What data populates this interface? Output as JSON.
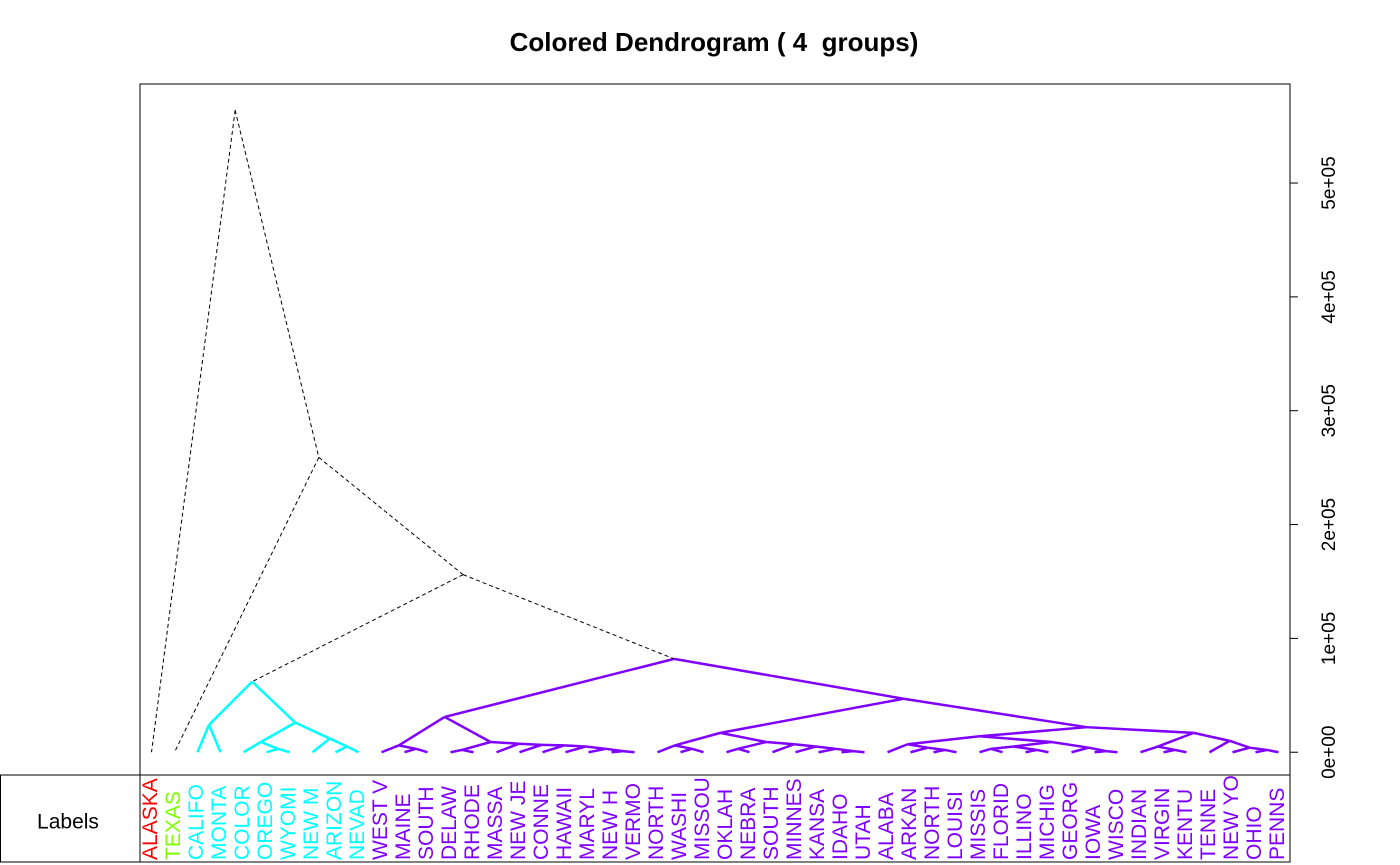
{
  "chart_data": {
    "type": "dendrogram",
    "title": "Colored Dendrogram ( 4  groups)",
    "row_label": "Labels",
    "labels": [
      "ALASKA",
      "TEXAS",
      "CALIFO",
      "MONTA",
      "COLOR",
      "OREGO",
      "WYOMI",
      "NEW M",
      "ARIZON",
      "NEVAD",
      "WEST V",
      "MAINE",
      "SOUTH",
      "DELAW",
      "RHODE",
      "MASSA",
      "NEW JE",
      "CONNE",
      "HAWAII",
      "MARYL",
      "NEW H",
      "VERMO",
      "NORTH",
      "WASHI",
      "MISSOU",
      "OKLAH",
      "NEBRA",
      "SOUTH",
      "MINNES",
      "KANSA",
      "IDAHO",
      "UTAH",
      "ALABA",
      "ARKAN",
      "NORTH",
      "LOUISI",
      "MISSIS",
      "FLORID",
      "ILLINO",
      "MICHIG",
      "GEORG",
      "IOWA",
      "WISCO",
      "INDIAN",
      "VIRGIN",
      "KENTU",
      "TENNE",
      "NEW YO",
      "OHIO",
      "PENNS"
    ],
    "label_colors": [
      "#FF0000",
      "#80FF00",
      "#00FFFF",
      "#00FFFF",
      "#00FFFF",
      "#00FFFF",
      "#00FFFF",
      "#00FFFF",
      "#00FFFF",
      "#00FFFF",
      "#8000FF",
      "#8000FF",
      "#8000FF",
      "#8000FF",
      "#8000FF",
      "#8000FF",
      "#8000FF",
      "#8000FF",
      "#8000FF",
      "#8000FF",
      "#8000FF",
      "#8000FF",
      "#8000FF",
      "#8000FF",
      "#8000FF",
      "#8000FF",
      "#8000FF",
      "#8000FF",
      "#8000FF",
      "#8000FF",
      "#8000FF",
      "#8000FF",
      "#8000FF",
      "#8000FF",
      "#8000FF",
      "#8000FF",
      "#8000FF",
      "#8000FF",
      "#8000FF",
      "#8000FF",
      "#8000FF",
      "#8000FF",
      "#8000FF",
      "#8000FF",
      "#8000FF",
      "#8000FF",
      "#8000FF",
      "#8000FF",
      "#8000FF",
      "#8000FF"
    ],
    "merge": [
      [
        -3,
        -4
      ],
      [
        -6,
        -7
      ],
      [
        -5,
        2
      ],
      [
        -9,
        -10
      ],
      [
        -8,
        4
      ],
      [
        3,
        5
      ],
      [
        1,
        6
      ],
      [
        -12,
        -13
      ],
      [
        -11,
        8
      ],
      [
        -14,
        -15
      ],
      [
        -21,
        -22
      ],
      [
        -20,
        11
      ],
      [
        -19,
        12
      ],
      [
        -18,
        13
      ],
      [
        -17,
        14
      ],
      [
        -16,
        15
      ],
      [
        10,
        16
      ],
      [
        9,
        17
      ],
      [
        -24,
        -25
      ],
      [
        -23,
        19
      ],
      [
        -26,
        -27
      ],
      [
        -31,
        -32
      ],
      [
        -30,
        22
      ],
      [
        -29,
        23
      ],
      [
        -28,
        24
      ],
      [
        21,
        25
      ],
      [
        20,
        26
      ],
      [
        -35,
        -36
      ],
      [
        -34,
        28
      ],
      [
        -33,
        29
      ],
      [
        -37,
        -38
      ],
      [
        -39,
        -40
      ],
      [
        31,
        32
      ],
      [
        -42,
        -43
      ],
      [
        -41,
        34
      ],
      [
        33,
        35
      ],
      [
        30,
        36
      ],
      [
        -45,
        -46
      ],
      [
        -44,
        38
      ],
      [
        -49,
        -50
      ],
      [
        -48,
        40
      ],
      [
        -47,
        41
      ],
      [
        39,
        42
      ],
      [
        37,
        43
      ],
      [
        27,
        44
      ],
      [
        18,
        45
      ],
      [
        7,
        46
      ],
      [
        -2,
        47
      ],
      [
        -1,
        48
      ]
    ],
    "height": [
      24000,
      3000,
      9000,
      5000,
      12000,
      26000,
      62000,
      3000,
      6000,
      2000,
      1000,
      3000,
      5000,
      6000,
      6500,
      7500,
      9000,
      31000,
      3000,
      6000,
      3000,
      1000,
      3000,
      5000,
      7000,
      9000,
      17000,
      2000,
      4000,
      7000,
      3000,
      2000,
      5000,
      1000,
      4000,
      9000,
      14000,
      2000,
      5000,
      2000,
      4000,
      10000,
      17000,
      22000,
      47000,
      82000,
      156000,
      259000,
      564000
    ],
    "merge_colors": [
      "#00FFFF",
      "#00FFFF",
      "#00FFFF",
      "#00FFFF",
      "#00FFFF",
      "#00FFFF",
      "#00FFFF",
      "#8000FF",
      "#8000FF",
      "#8000FF",
      "#8000FF",
      "#8000FF",
      "#8000FF",
      "#8000FF",
      "#8000FF",
      "#8000FF",
      "#8000FF",
      "#8000FF",
      "#8000FF",
      "#8000FF",
      "#8000FF",
      "#8000FF",
      "#8000FF",
      "#8000FF",
      "#8000FF",
      "#8000FF",
      "#8000FF",
      "#8000FF",
      "#8000FF",
      "#8000FF",
      "#8000FF",
      "#8000FF",
      "#8000FF",
      "#8000FF",
      "#8000FF",
      "#8000FF",
      "#8000FF",
      "#8000FF",
      "#8000FF",
      "#8000FF",
      "#8000FF",
      "#8000FF",
      "#8000FF",
      "#8000FF",
      "#8000FF",
      "#8000FF",
      "#000000",
      "#000000",
      "#000000"
    ],
    "ylim": [
      -20000,
      587000
    ],
    "yticks": [
      {
        "value": 0,
        "label": "0e+00"
      },
      {
        "value": 100000,
        "label": "1e+05"
      },
      {
        "value": 200000,
        "label": "2e+05"
      },
      {
        "value": 300000,
        "label": "3e+05"
      },
      {
        "value": 400000,
        "label": "4e+05"
      },
      {
        "value": 500000,
        "label": "5e+05"
      }
    ]
  }
}
